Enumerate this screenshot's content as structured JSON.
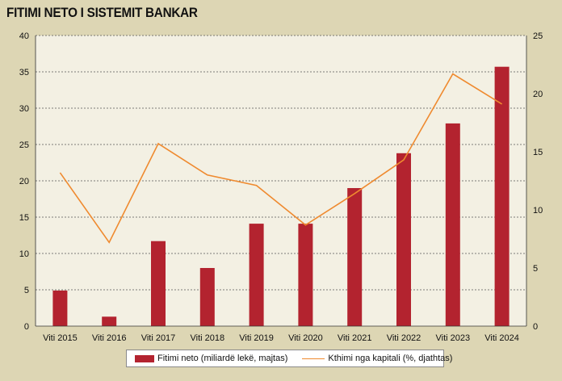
{
  "chart_data": {
    "type": "bar",
    "title": "FITIMI NETO I SISTEMIT BANKAR",
    "categories": [
      "Viti 2015",
      "Viti 2016",
      "Viti 2017",
      "Viti 2018",
      "Viti 2019",
      "Viti 2020",
      "Viti 2021",
      "Viti 2022",
      "Viti 2023",
      "Viti 2024"
    ],
    "series": [
      {
        "name": "Fitimi neto (miliardë lekë, majtas)",
        "type": "bar",
        "axis": "left",
        "color": "#b3232f",
        "values": [
          4.9,
          1.3,
          11.7,
          8.0,
          14.1,
          14.1,
          19.0,
          23.8,
          27.9,
          35.7
        ]
      },
      {
        "name": "Kthimi nga kapitali (%, djathtas)",
        "type": "line",
        "axis": "right",
        "color": "#ef8a2f",
        "values": [
          13.2,
          7.2,
          15.7,
          13.0,
          12.1,
          8.7,
          11.4,
          14.3,
          21.7,
          19.1
        ]
      }
    ],
    "y_left": {
      "min": 0,
      "max": 40,
      "ticks": [
        0,
        5,
        10,
        15,
        20,
        25,
        30,
        35,
        40
      ]
    },
    "y_right": {
      "min": 0,
      "max": 25,
      "ticks": [
        0,
        5,
        10,
        15,
        20,
        25
      ]
    },
    "grid": "horizontal-dashed",
    "plot_background": "#f3f0e3",
    "legend_position": "bottom"
  }
}
